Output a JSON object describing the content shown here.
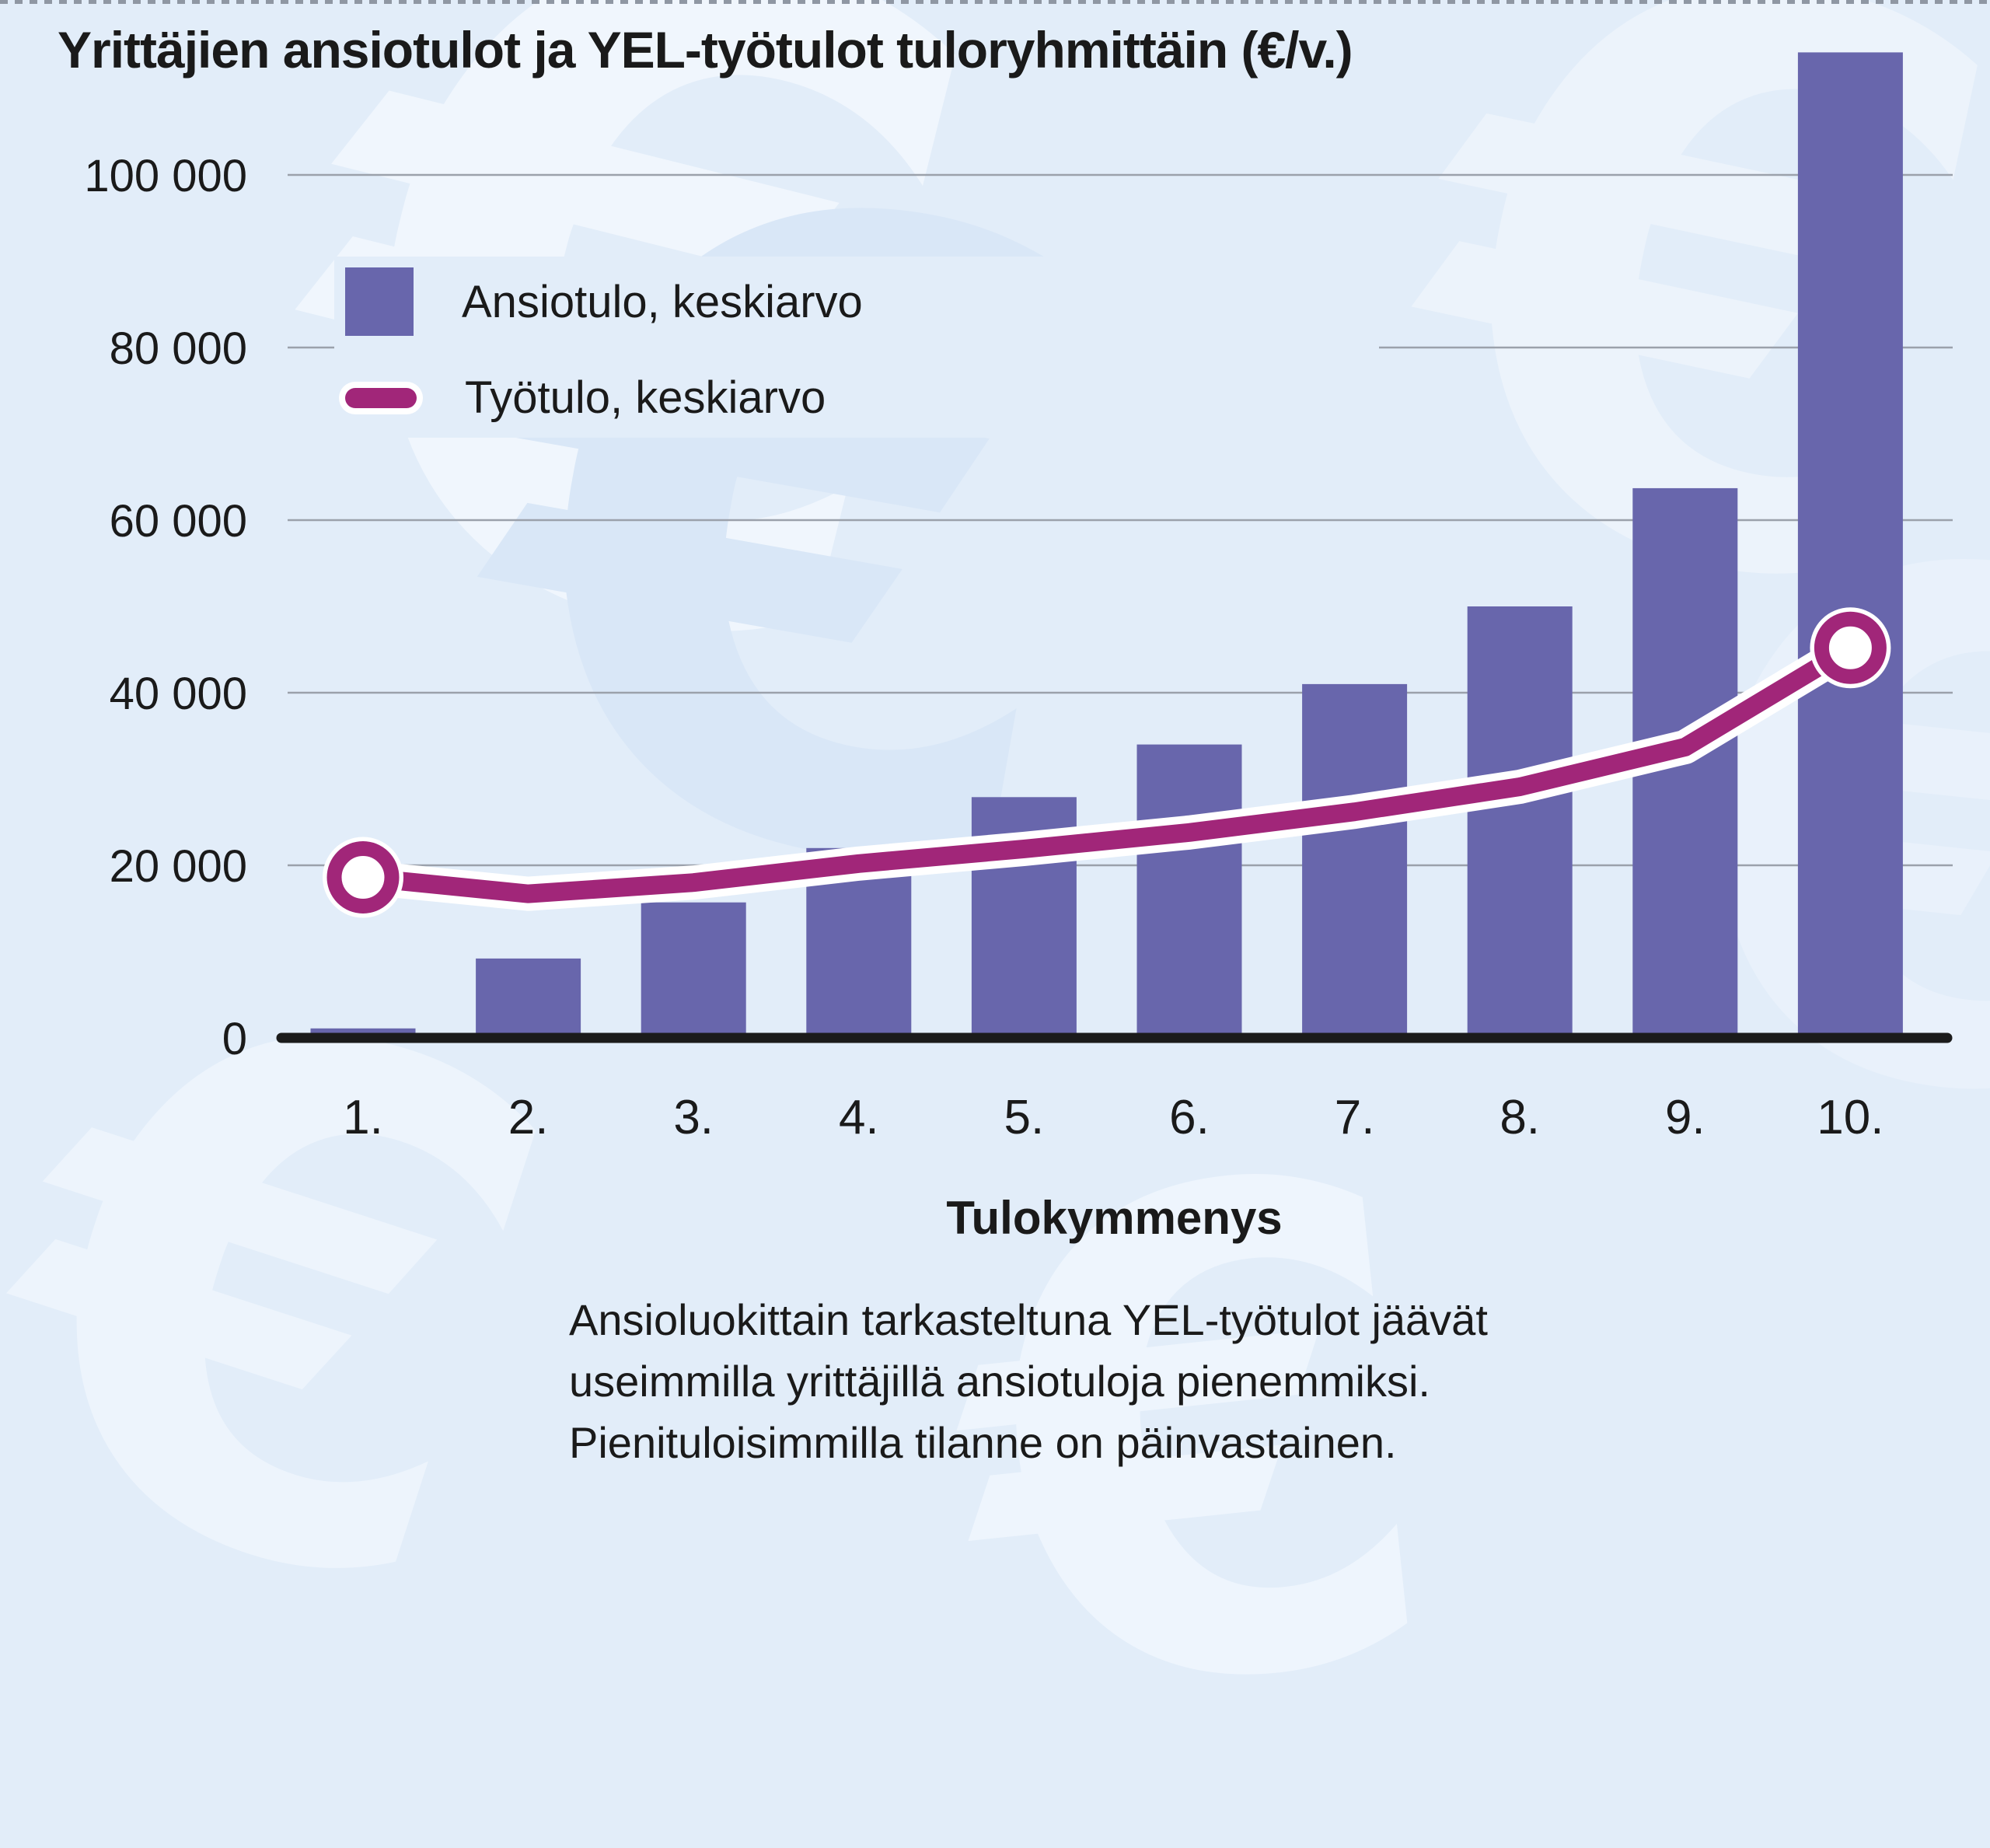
{
  "title": "Yrittäjien ansiotulot ja YEL-työtulot tuloryhmittäin (€/v.)",
  "legend": {
    "items": [
      {
        "label": "Ansiotulo, keskiarvo",
        "swatch": "bar-square"
      },
      {
        "label": "Työtulo, keskiarvo",
        "swatch": "line-dash"
      }
    ]
  },
  "chart_data": {
    "type": "bar",
    "title": "Yrittäjien ansiotulot ja YEL-työtulot tuloryhmittäin (€/v.)",
    "categories": [
      "1.",
      "2.",
      "3.",
      "4.",
      "5.",
      "6.",
      "7.",
      "8.",
      "9.",
      "10."
    ],
    "series": [
      {
        "name": "Ansiotulo, keskiarvo",
        "type": "bar",
        "color": "#6866ac",
        "values": [
          1100,
          9200,
          15700,
          22000,
          27900,
          34000,
          41000,
          50000,
          63700,
          114200
        ]
      },
      {
        "name": "Työtulo, keskiarvo",
        "type": "line",
        "color": "#a12679",
        "values": [
          18600,
          16700,
          18000,
          20200,
          21900,
          23800,
          26200,
          29100,
          33700,
          45200
        ],
        "markers_at": [
          0,
          9
        ]
      }
    ],
    "xlabel": "Tulokymmenys",
    "ylabel": "",
    "ylim": [
      0,
      100000
    ],
    "y_ticks": [
      0,
      20000,
      40000,
      60000,
      80000,
      100000
    ],
    "y_tick_labels": [
      "0",
      "20 000",
      "40 000",
      "60 000",
      "80 000",
      "100 000"
    ],
    "grid": "horizontal",
    "legend_position": "upper-left",
    "note": "bar 10. exceeds the 100 000 axis maximum"
  },
  "caption": {
    "lines": [
      "Ansioluokittain tarkasteltuna YEL-työtulot jäävät",
      "useimmilla yrittäjillä ansiotuloja pienemmiksi.",
      "Pienituloisimmilla tilanne on päinvastainen."
    ]
  },
  "colors": {
    "background": "#e2edf9",
    "bar": "#6866ac",
    "line": "#a12679",
    "axis": "#1b1b1b",
    "grid": "#9ba1ab",
    "text": "#1a1a1a",
    "watermark_light": "#eff5fd",
    "watermark_dark": "#d9e7f7",
    "dotted_border": "#8f97a3"
  }
}
